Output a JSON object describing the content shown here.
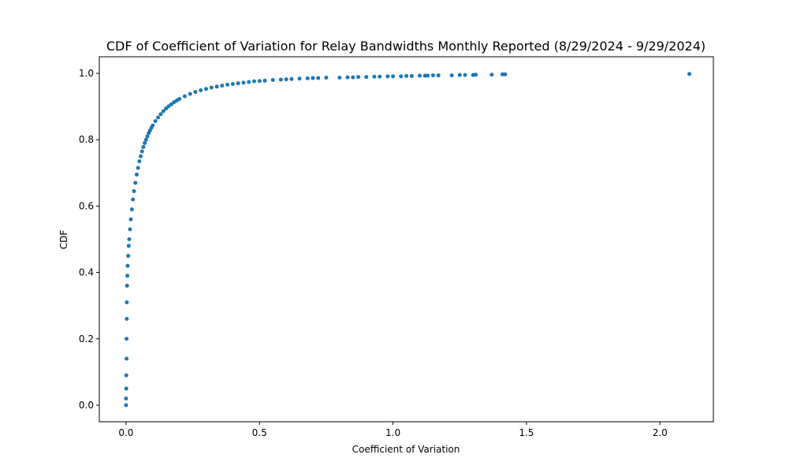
{
  "chart_data": {
    "type": "scatter",
    "title": "CDF of Coefficient of Variation for Relay Bandwidths Monthly Reported (8/29/2024 - 9/29/2024)",
    "xlabel": "Coefficient of Variation",
    "ylabel": "CDF",
    "xlim": [
      -0.1,
      2.2
    ],
    "ylim": [
      -0.05,
      1.05
    ],
    "x_ticks": [
      0.0,
      0.5,
      1.0,
      1.5,
      2.0
    ],
    "x_tick_labels": [
      "0.0",
      "0.5",
      "1.0",
      "1.5",
      "2.0"
    ],
    "y_ticks": [
      0.0,
      0.2,
      0.4,
      0.6,
      0.8,
      1.0
    ],
    "y_tick_labels": [
      "0.0",
      "0.2",
      "0.4",
      "0.6",
      "0.8",
      "1.0"
    ],
    "grid": false,
    "legend": "none",
    "marker_color": "#1f77b4",
    "series": [
      {
        "x": [
          0.0,
          0.0,
          0.001,
          0.001,
          0.002,
          0.002,
          0.003,
          0.003,
          0.004,
          0.005,
          0.006,
          0.008,
          0.01,
          0.012,
          0.015,
          0.018,
          0.022,
          0.026,
          0.03,
          0.035,
          0.04,
          0.045,
          0.05,
          0.055,
          0.06,
          0.065,
          0.07,
          0.075,
          0.08,
          0.085,
          0.09,
          0.095,
          0.1,
          0.11,
          0.12,
          0.13,
          0.14,
          0.15,
          0.16,
          0.17,
          0.18,
          0.19,
          0.2,
          0.22,
          0.24,
          0.26,
          0.28,
          0.3,
          0.32,
          0.34,
          0.36,
          0.38,
          0.4,
          0.42,
          0.44,
          0.46,
          0.48,
          0.5,
          0.52,
          0.55,
          0.58,
          0.6,
          0.62,
          0.65,
          0.68,
          0.7,
          0.72,
          0.75,
          0.8,
          0.83,
          0.85,
          0.87,
          0.9,
          0.93,
          0.95,
          0.98,
          1.0,
          1.03,
          1.05,
          1.07,
          1.1,
          1.12,
          1.13,
          1.15,
          1.17,
          1.22,
          1.25,
          1.27,
          1.3,
          1.31,
          1.37,
          1.41,
          1.42,
          2.11
        ],
        "y": [
          0.0,
          0.02,
          0.05,
          0.09,
          0.14,
          0.2,
          0.26,
          0.31,
          0.36,
          0.39,
          0.42,
          0.45,
          0.48,
          0.5,
          0.53,
          0.56,
          0.59,
          0.62,
          0.645,
          0.67,
          0.695,
          0.715,
          0.735,
          0.75,
          0.765,
          0.778,
          0.79,
          0.8,
          0.81,
          0.82,
          0.828,
          0.836,
          0.843,
          0.856,
          0.867,
          0.877,
          0.886,
          0.894,
          0.901,
          0.907,
          0.913,
          0.918,
          0.923,
          0.931,
          0.938,
          0.944,
          0.949,
          0.953,
          0.957,
          0.96,
          0.963,
          0.966,
          0.968,
          0.97,
          0.972,
          0.974,
          0.976,
          0.977,
          0.978,
          0.98,
          0.981,
          0.982,
          0.983,
          0.984,
          0.985,
          0.986,
          0.986,
          0.987,
          0.987,
          0.988,
          0.988,
          0.989,
          0.989,
          0.99,
          0.99,
          0.991,
          0.991,
          0.991,
          0.992,
          0.992,
          0.993,
          0.993,
          0.993,
          0.994,
          0.994,
          0.994,
          0.995,
          0.995,
          0.995,
          0.996,
          0.996,
          0.997,
          0.997,
          0.998
        ]
      }
    ]
  }
}
